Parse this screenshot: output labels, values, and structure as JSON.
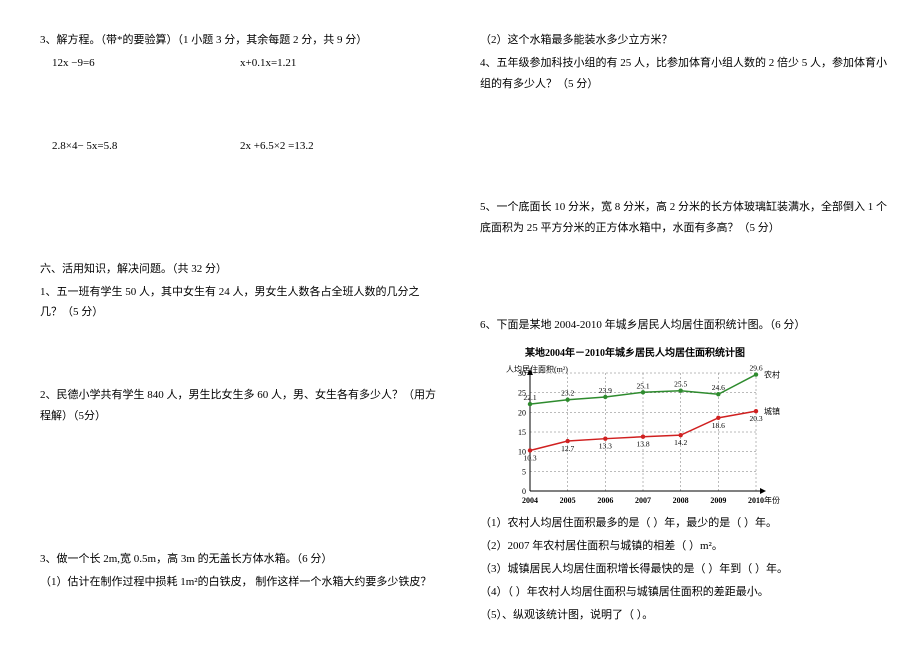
{
  "left": {
    "q3_head": "3、解方程。（带*的要验算）（1 小题 3 分，其余每题 2 分，共 9 分）",
    "eq1a": "12x −9=6",
    "eq1b": "x+0.1x=1.21",
    "eq2a": "2.8×4− 5x=5.8",
    "eq2b": "2x +6.5×2 =13.2",
    "sec6": "六、活用知识，解决问题。（共 32 分）",
    "q1": "1、五一班有学生 50 人，其中女生有 24 人，男女生人数各占全班人数的几分之几？（5 分）",
    "q2": "2、民德小学共有学生 840 人，男生比女生多 60 人，男、女生各有多少人？（用方程解）（5分）",
    "q3": "3、做一个长 2m,宽 0.5m，高 3m 的无盖长方体水箱。（6 分）",
    "q3_1": "（1）估计在制作过程中损耗 1m²的白铁皮，   制作这样一个水箱大约要多少铁皮？"
  },
  "right": {
    "q3_2": "（2）这个水箱最多能装水多少立方米？",
    "q4": "4、五年级参加科技小组的有 25 人，比参加体育小组人数的 2 倍少 5 人，参加体育小组的有多少人？（5 分）",
    "q5": "5、一个底面长 10 分米，宽 8 分米，高 2 分米的长方体玻璃缸装满水，全部倒入 1 个底面积为 25 平方分米的正方体水箱中，水面有多高？（5 分）",
    "q6_head": "6、下面是某地 2004-2010 年城乡居民人均居住面积统计图。（6 分）",
    "chart": {
      "title": "某地2004年－2010年城乡居民人均居住面积统计图",
      "y_axis_label": "人均居住面积(m²)",
      "x_axis_label": "年份",
      "years": [
        "2004",
        "2005",
        "2006",
        "2007",
        "2008",
        "2009",
        "2010"
      ],
      "y_ticks": [
        "0",
        "5",
        "10",
        "15",
        "20",
        "25",
        "30"
      ],
      "rural": {
        "label": "农村",
        "color": "#2e8b2e",
        "values": [
          22.1,
          23.2,
          23.9,
          25.1,
          25.5,
          24.6,
          29.6
        ]
      },
      "urban": {
        "label": "城镇",
        "color": "#d02020",
        "values": [
          10.3,
          12.7,
          13.3,
          13.8,
          14.2,
          18.6,
          20.3
        ]
      },
      "grid_color": "#777777",
      "bg": "#ffffff",
      "font_size": 8
    },
    "q6_1": "（1）农村人均居住面积最多的是（      ）年，最少的是（      ）年。",
    "q6_2": "（2）2007 年农村居住面积与城镇的相差（        ）m²。",
    "q6_3": "（3）城镇居民人均居住面积增长得最快的是（      ）年到（      ）年。",
    "q6_4": "（4）（            ）年农村人均居住面积与城镇居住面积的差距最小。",
    "q6_5": "（5）、纵观该统计图，说明了（                                            ）。"
  }
}
